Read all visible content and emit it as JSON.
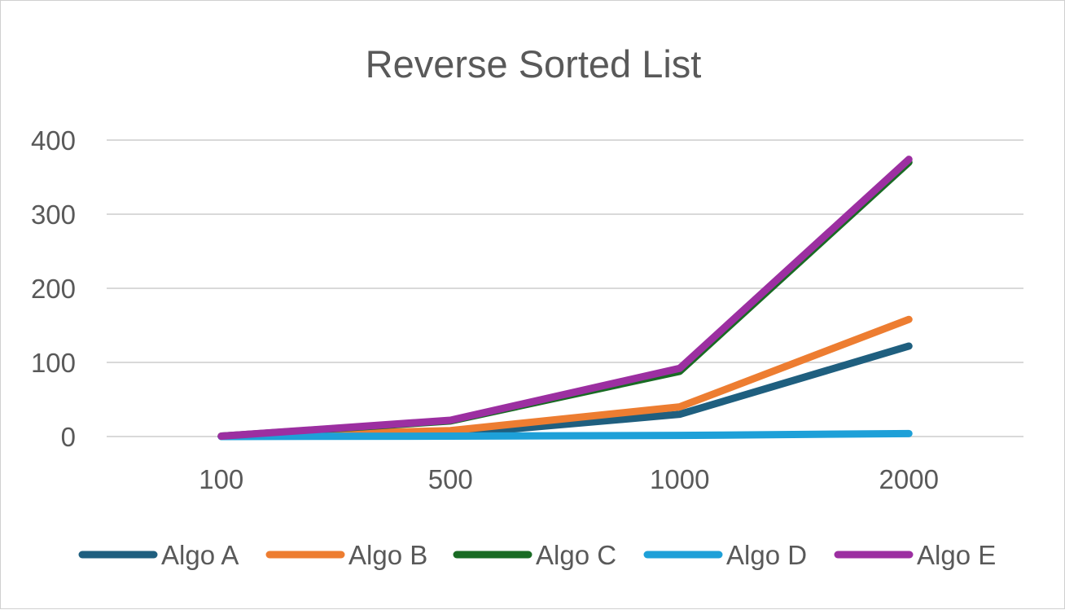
{
  "chart_data": {
    "type": "line",
    "title": "Reverse Sorted List",
    "xlabel": "",
    "ylabel": "",
    "categories": [
      "100",
      "500",
      "1000",
      "2000"
    ],
    "ylim": [
      0,
      400
    ],
    "yticks": [
      0,
      100,
      200,
      300,
      400
    ],
    "grid": true,
    "legend_position": "bottom",
    "series": [
      {
        "name": "Algo A",
        "color": "#1f5f7f",
        "values": [
          0.2,
          3,
          30,
          122
        ]
      },
      {
        "name": "Algo B",
        "color": "#ed7d31",
        "values": [
          0.3,
          8,
          40,
          158
        ]
      },
      {
        "name": "Algo C",
        "color": "#196b24",
        "values": [
          0.5,
          21,
          88,
          370
        ]
      },
      {
        "name": "Algo D",
        "color": "#1ea0d8",
        "values": [
          0.05,
          0.5,
          1.5,
          4
        ]
      },
      {
        "name": "Algo E",
        "color": "#9c2fa1",
        "values": [
          0.5,
          22,
          92,
          374
        ]
      }
    ]
  }
}
